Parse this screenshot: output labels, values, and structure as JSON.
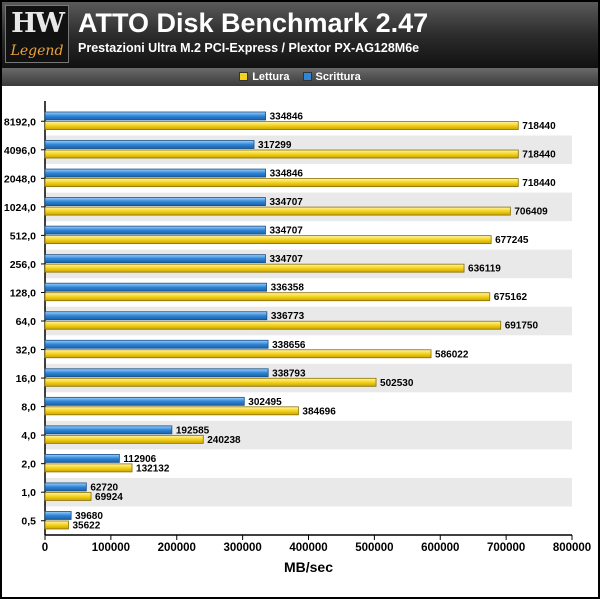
{
  "header": {
    "logo_top": "HW",
    "logo_bottom": "Legend",
    "title": "ATTO Disk Benchmark 2.47",
    "subtitle": "Prestazioni Ultra M.2 PCI-Express / Plextor PX-AG128M6e"
  },
  "colors": {
    "read": "#f5d21a",
    "write": "#2f86d6",
    "band": "#e9e9e9"
  },
  "chart_data": {
    "type": "bar",
    "orientation": "horizontal",
    "title": "",
    "xlabel": "MB/sec",
    "ylabel": "",
    "xlim": [
      0,
      800000
    ],
    "xticks": [
      "0",
      "100000",
      "200000",
      "300000",
      "400000",
      "500000",
      "600000",
      "700000",
      "800000"
    ],
    "categories": [
      "8192,0",
      "4096,0",
      "2048,0",
      "1024,0",
      "512,0",
      "256,0",
      "128,0",
      "64,0",
      "32,0",
      "16,0",
      "8,0",
      "4,0",
      "2,0",
      "1,0",
      "0,5"
    ],
    "series": [
      {
        "name": "Scrittura",
        "color": "#2f86d6",
        "values": [
          334846,
          317299,
          334846,
          334707,
          334707,
          334707,
          336358,
          336773,
          338656,
          338793,
          302495,
          192585,
          112906,
          62720,
          39680
        ]
      },
      {
        "name": "Lettura",
        "color": "#f5d21a",
        "values": [
          718440,
          718440,
          718440,
          706409,
          677245,
          636119,
          675162,
          691750,
          586022,
          502530,
          384696,
          240238,
          132132,
          69924,
          35622
        ]
      }
    ],
    "legend_position": "top-center",
    "grid": "alternating row bands"
  }
}
